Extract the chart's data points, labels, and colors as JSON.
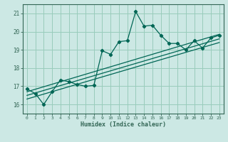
{
  "xlabel": "Humidex (Indice chaleur)",
  "ylabel": "",
  "bg_color": "#cce8e4",
  "plot_bg_color": "#cce8e4",
  "axis_color": "#336655",
  "grid_color": "#99ccbb",
  "line_color": "#006655",
  "xlim": [
    -0.5,
    23.5
  ],
  "ylim": [
    15.5,
    21.5
  ],
  "xticks": [
    0,
    1,
    2,
    3,
    4,
    5,
    6,
    7,
    8,
    9,
    10,
    11,
    12,
    13,
    14,
    15,
    16,
    17,
    18,
    19,
    20,
    21,
    22,
    23
  ],
  "yticks": [
    16,
    17,
    18,
    19,
    20,
    21
  ],
  "main_x": [
    0,
    1,
    2,
    3,
    4,
    5,
    6,
    7,
    8,
    9,
    10,
    11,
    12,
    13,
    14,
    15,
    16,
    17,
    18,
    19,
    20,
    21,
    22,
    23
  ],
  "main_y": [
    16.85,
    16.6,
    16.0,
    16.7,
    17.35,
    17.25,
    17.1,
    17.0,
    17.05,
    18.95,
    18.75,
    19.45,
    19.5,
    21.1,
    20.3,
    20.35,
    19.8,
    19.35,
    19.35,
    19.0,
    19.5,
    19.1,
    19.65,
    19.8
  ],
  "line1_x": [
    0,
    23
  ],
  "line1_y": [
    16.5,
    19.6
  ],
  "line2_x": [
    0,
    23
  ],
  "line2_y": [
    16.3,
    19.4
  ],
  "line3_x": [
    0,
    23
  ],
  "line3_y": [
    16.7,
    19.85
  ]
}
